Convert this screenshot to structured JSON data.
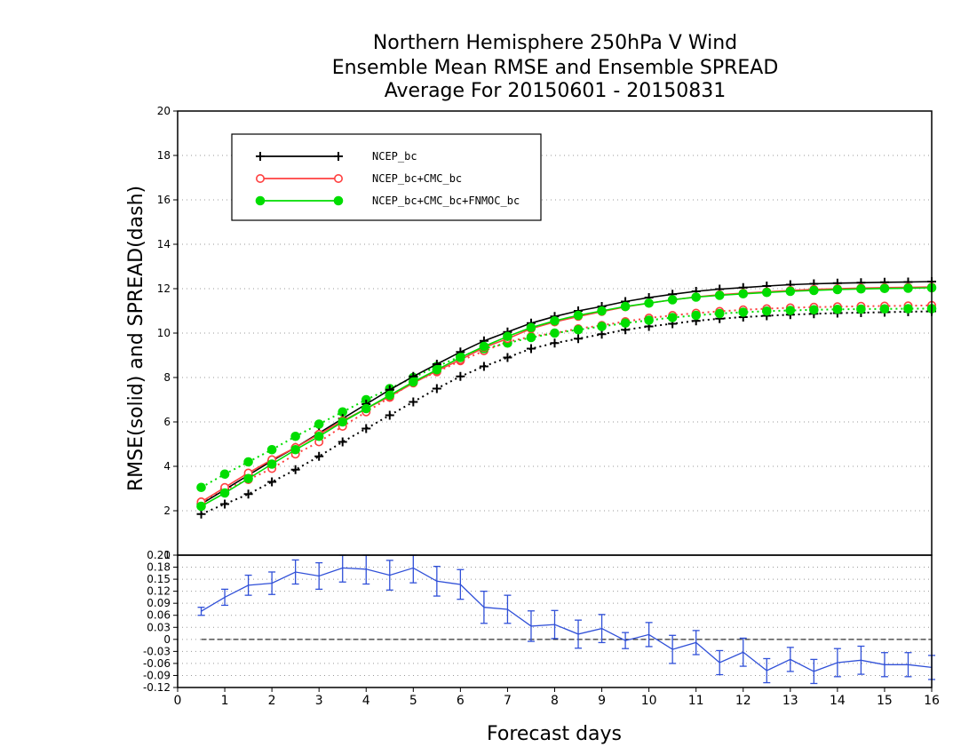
{
  "chart_data": [
    {
      "type": "line",
      "title": [
        "Northern Hemisphere 250hPa V Wind",
        "Ensemble Mean RMSE and Ensemble SPREAD",
        "Average For 20150601 - 20150831"
      ],
      "xlabel": "Forecast days",
      "ylabel": "RMSE(solid) and SPREAD(dash)",
      "xlim": [
        0,
        16
      ],
      "ylim": [
        0,
        20
      ],
      "yticks": [
        2,
        4,
        6,
        8,
        10,
        12,
        14,
        16,
        18,
        20
      ],
      "grid": true,
      "legend_position": "top-left",
      "x": [
        0.5,
        1.0,
        1.5,
        2.0,
        2.5,
        3.0,
        3.5,
        4.0,
        4.5,
        5.0,
        5.5,
        6.0,
        6.5,
        7.0,
        7.5,
        8.0,
        8.5,
        9.0,
        9.5,
        10.0,
        10.5,
        11.0,
        11.5,
        12.0,
        12.5,
        13.0,
        13.5,
        14.0,
        14.5,
        15.0,
        15.5,
        16.0
      ],
      "series": [
        {
          "name": "NCEP_bc",
          "color": "#000000",
          "marker": "plus",
          "kind": "rmse",
          "values": [
            2.3,
            2.95,
            3.6,
            4.25,
            4.85,
            5.5,
            6.15,
            6.8,
            7.45,
            8.05,
            8.6,
            9.15,
            9.65,
            10.05,
            10.45,
            10.75,
            11.0,
            11.2,
            11.42,
            11.6,
            11.75,
            11.88,
            11.98,
            12.05,
            12.12,
            12.18,
            12.22,
            12.25,
            12.27,
            12.29,
            12.3,
            12.32
          ]
        },
        {
          "name": "NCEP_bc+CMC_bc",
          "color": "#ff4040",
          "marker": "open-circle",
          "kind": "rmse",
          "values": [
            2.4,
            3.05,
            3.7,
            4.3,
            4.85,
            5.45,
            6.05,
            6.6,
            7.15,
            7.75,
            8.3,
            8.8,
            9.35,
            9.75,
            10.2,
            10.5,
            10.75,
            10.97,
            11.18,
            11.35,
            11.5,
            11.63,
            11.73,
            11.8,
            11.86,
            11.92,
            11.97,
            12.0,
            12.03,
            12.05,
            12.06,
            12.08
          ]
        },
        {
          "name": "NCEP_bc+CMC_bc+FNMOC_bc",
          "color": "#00dd00",
          "marker": "filled-circle",
          "kind": "rmse",
          "values": [
            2.2,
            2.8,
            3.45,
            4.1,
            4.75,
            5.35,
            6.0,
            6.6,
            7.2,
            7.8,
            8.35,
            8.9,
            9.4,
            9.85,
            10.25,
            10.55,
            10.8,
            11.0,
            11.2,
            11.35,
            11.5,
            11.62,
            11.7,
            11.77,
            11.83,
            11.88,
            11.92,
            11.96,
            11.99,
            12.01,
            12.02,
            12.04
          ]
        },
        {
          "name": "NCEP_bc",
          "color": "#000000",
          "marker": "plus",
          "kind": "spread",
          "values": [
            1.85,
            2.3,
            2.75,
            3.3,
            3.85,
            4.45,
            5.1,
            5.7,
            6.3,
            6.9,
            7.5,
            8.05,
            8.5,
            8.9,
            9.3,
            9.55,
            9.75,
            9.95,
            10.15,
            10.3,
            10.42,
            10.55,
            10.65,
            10.72,
            10.78,
            10.83,
            10.87,
            10.9,
            10.92,
            10.94,
            10.96,
            10.98
          ]
        },
        {
          "name": "NCEP_bc+CMC_bc",
          "color": "#ff4040",
          "marker": "open-circle",
          "kind": "spread",
          "values": [
            2.4,
            2.95,
            3.4,
            3.9,
            4.55,
            5.1,
            5.8,
            6.45,
            7.1,
            7.8,
            8.25,
            8.75,
            9.2,
            9.6,
            9.85,
            10.0,
            10.2,
            10.35,
            10.52,
            10.68,
            10.8,
            10.9,
            10.98,
            11.05,
            11.1,
            11.14,
            11.17,
            11.19,
            11.21,
            11.22,
            11.23,
            11.25
          ]
        },
        {
          "name": "NCEP_bc+CMC_bc+FNMOC_bc",
          "color": "#00dd00",
          "marker": "filled-circle",
          "kind": "spread",
          "values": [
            3.05,
            3.65,
            4.2,
            4.75,
            5.35,
            5.9,
            6.45,
            7.0,
            7.5,
            8.0,
            8.5,
            8.95,
            9.3,
            9.55,
            9.8,
            10.0,
            10.15,
            10.3,
            10.45,
            10.58,
            10.7,
            10.8,
            10.88,
            10.94,
            10.99,
            11.02,
            11.05,
            11.07,
            11.08,
            11.09,
            11.1,
            11.1
          ]
        }
      ]
    },
    {
      "type": "line",
      "xlabel": "Forecast days",
      "xlim": [
        0,
        16
      ],
      "xticks": [
        0,
        1,
        2,
        3,
        4,
        5,
        6,
        7,
        8,
        9,
        10,
        11,
        12,
        13,
        14,
        15,
        16
      ],
      "ylim": [
        -0.12,
        0.21
      ],
      "yticks": [
        "0.21",
        "0.18",
        "0.15",
        "0.12",
        "0.09",
        "0.06",
        "0.03",
        "0",
        "-0.03",
        "-0.06",
        "-0.09",
        "-0.12"
      ],
      "ytick_values": [
        0.21,
        0.18,
        0.15,
        0.12,
        0.09,
        0.06,
        0.03,
        0,
        -0.03,
        -0.06,
        -0.09,
        -0.12
      ],
      "top_corner_label": "0",
      "grid": true,
      "zero_line": true,
      "x": [
        0.5,
        1.0,
        1.5,
        2.0,
        2.5,
        3.0,
        3.5,
        4.0,
        4.5,
        5.0,
        5.5,
        6.0,
        6.5,
        7.0,
        7.5,
        8.0,
        8.5,
        9.0,
        9.5,
        10.0,
        10.5,
        11.0,
        11.5,
        12.0,
        12.5,
        13.0,
        13.5,
        14.0,
        14.5,
        15.0,
        15.5,
        16.0
      ],
      "series": [
        {
          "color": "#3050d8",
          "marker": "errorbar",
          "values": [
            0.07,
            0.105,
            0.135,
            0.14,
            0.168,
            0.158,
            0.178,
            0.175,
            0.16,
            0.178,
            0.145,
            0.137,
            0.08,
            0.075,
            0.033,
            0.037,
            0.013,
            0.027,
            -0.003,
            0.012,
            -0.025,
            -0.008,
            -0.058,
            -0.032,
            -0.078,
            -0.05,
            -0.08,
            -0.058,
            -0.052,
            -0.063,
            -0.063,
            -0.07
          ],
          "err": [
            0.01,
            0.02,
            0.025,
            0.028,
            0.03,
            0.033,
            0.035,
            0.037,
            0.037,
            0.037,
            0.037,
            0.037,
            0.04,
            0.035,
            0.038,
            0.035,
            0.035,
            0.035,
            0.02,
            0.03,
            0.035,
            0.03,
            0.03,
            0.035,
            0.03,
            0.03,
            0.03,
            0.035,
            0.035,
            0.03,
            0.03,
            0.03
          ]
        }
      ]
    }
  ]
}
